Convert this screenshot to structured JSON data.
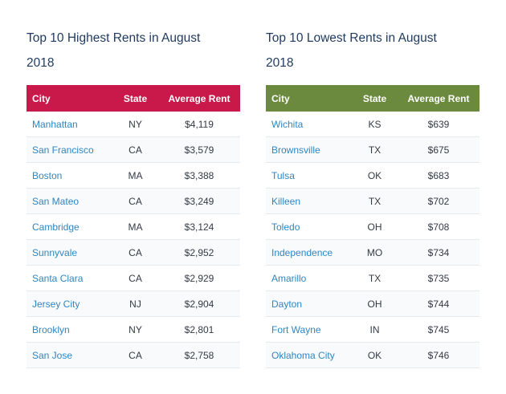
{
  "highest": {
    "title_line1": "Top 10 Highest Rents in August",
    "title_line2": "2018",
    "header_color": "#c8194a",
    "columns": [
      "City",
      "State",
      "Average Rent"
    ],
    "rows": [
      [
        "Manhattan",
        "NY",
        "$4,119"
      ],
      [
        "San Francisco",
        "CA",
        "$3,579"
      ],
      [
        "Boston",
        "MA",
        "$3,388"
      ],
      [
        "San Mateo",
        "CA",
        "$3,249"
      ],
      [
        "Cambridge",
        "MA",
        "$3,124"
      ],
      [
        "Sunnyvale",
        "CA",
        "$2,952"
      ],
      [
        "Santa Clara",
        "CA",
        "$2,929"
      ],
      [
        "Jersey City",
        "NJ",
        "$2,904"
      ],
      [
        "Brooklyn",
        "NY",
        "$2,801"
      ],
      [
        "San Jose",
        "CA",
        "$2,758"
      ]
    ]
  },
  "lowest": {
    "title_line1": "Top 10 Lowest Rents in August",
    "title_line2": "2018",
    "header_color": "#6b8a3e",
    "columns": [
      "City",
      "State",
      "Average Rent"
    ],
    "rows": [
      [
        "Wichita",
        "KS",
        "$639"
      ],
      [
        "Brownsville",
        "TX",
        "$675"
      ],
      [
        "Tulsa",
        "OK",
        "$683"
      ],
      [
        "Killeen",
        "TX",
        "$702"
      ],
      [
        "Toledo",
        "OH",
        "$708"
      ],
      [
        "Independence",
        "MO",
        "$734"
      ],
      [
        "Amarillo",
        "TX",
        "$735"
      ],
      [
        "Dayton",
        "OH",
        "$744"
      ],
      [
        "Fort Wayne",
        "IN",
        "$745"
      ],
      [
        "Oklahoma City",
        "OK",
        "$746"
      ]
    ]
  }
}
